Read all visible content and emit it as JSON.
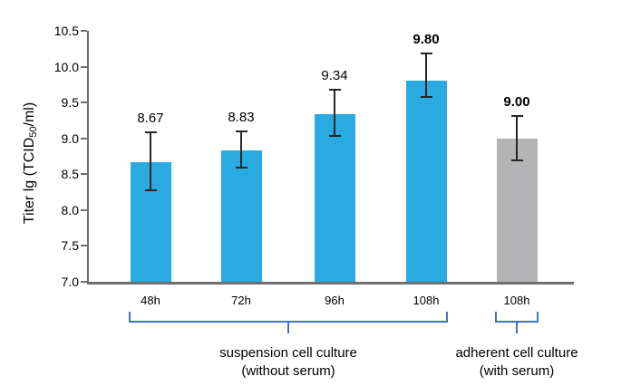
{
  "chart_data": {
    "type": "bar",
    "title": "",
    "ylabel": {
      "pre": "Titer lg (TCID",
      "sub": "50",
      "post": "/ml)"
    },
    "xlabel": "",
    "ylim": [
      7.0,
      10.5
    ],
    "yticks": [
      "7.0",
      "7.5",
      "8.0",
      "8.5",
      "9.0",
      "9.5",
      "10.0",
      "10.5"
    ],
    "grid": false,
    "legend": null,
    "categories": [
      "48h",
      "72h",
      "96h",
      "108h",
      "108h"
    ],
    "bars": [
      {
        "label": "48h",
        "value": 8.67,
        "display": "8.67",
        "err_high": 9.08,
        "err_low": 8.28,
        "series": "suspension",
        "bold": false
      },
      {
        "label": "72h",
        "value": 8.83,
        "display": "8.83",
        "err_high": 9.1,
        "err_low": 8.59,
        "series": "suspension",
        "bold": false
      },
      {
        "label": "96h",
        "value": 9.34,
        "display": "9.34",
        "err_high": 9.68,
        "err_low": 9.03,
        "series": "suspension",
        "bold": false
      },
      {
        "label": "108h",
        "value": 9.8,
        "display": "9.80",
        "err_high": 10.18,
        "err_low": 9.58,
        "series": "suspension",
        "bold": true
      },
      {
        "label": "108h",
        "value": 9.0,
        "display": "9.00",
        "err_high": 9.31,
        "err_low": 8.69,
        "series": "adherent",
        "bold": true
      }
    ],
    "groups": [
      {
        "label_line1": "suspension cell culture",
        "label_line2": "(without serum)",
        "bar_indices": [
          0,
          1,
          2,
          3
        ]
      },
      {
        "label_line1": "adherent cell culture",
        "label_line2": "(with serum)",
        "bar_indices": [
          4
        ]
      }
    ],
    "colors": {
      "suspension": "#29ABE2",
      "adherent": "#B4B4B6",
      "bracket": "#4472C4",
      "axis": "#6E6E6E",
      "error": "#262626",
      "text": "#000000"
    }
  }
}
